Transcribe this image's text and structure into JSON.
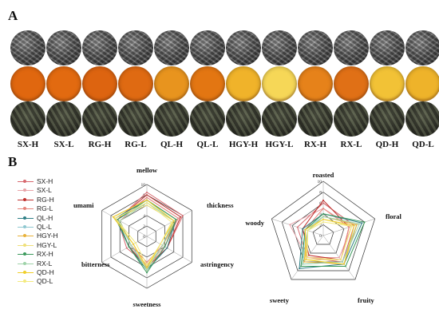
{
  "panel_a": {
    "label": "A",
    "samples": [
      "SX-H",
      "SX-L",
      "RG-H",
      "RG-L",
      "QL-H",
      "QL-L",
      "HGY-H",
      "HGY-L",
      "RX-H",
      "RX-L",
      "QD-H",
      "QD-L"
    ],
    "infusion_colors": [
      "#e0670f",
      "#e26a10",
      "#dd6410",
      "#df6a12",
      "#e8941e",
      "#e37612",
      "#f0b32a",
      "#f6d757",
      "#e6821a",
      "#e07016",
      "#f2c236",
      "#eeb32a"
    ]
  },
  "panel_b": {
    "label": "B",
    "legend": [
      {
        "name": "SX-H",
        "color": "#d7686e"
      },
      {
        "name": "SX-L",
        "color": "#e8a3a8"
      },
      {
        "name": "RG-H",
        "color": "#c0302d"
      },
      {
        "name": "RG-L",
        "color": "#e6847b"
      },
      {
        "name": "QL-H",
        "color": "#2e7f86"
      },
      {
        "name": "QL-L",
        "color": "#8fc8d0"
      },
      {
        "name": "HGY-H",
        "color": "#e8b23a"
      },
      {
        "name": "HGY-L",
        "color": "#efe07a"
      },
      {
        "name": "RX-H",
        "color": "#3c9a5c"
      },
      {
        "name": "RX-L",
        "color": "#9fd3a9"
      },
      {
        "name": "QD-H",
        "color": "#f0cf2a"
      },
      {
        "name": "QD-L",
        "color": "#f4ea7e"
      }
    ]
  },
  "chart_data": [
    {
      "type": "radar",
      "axes": [
        "mellow",
        "thickness",
        "astringency",
        "sweetness",
        "bitterness",
        "umami"
      ],
      "ticks": [
        "0",
        "2",
        "4",
        "6",
        "8",
        "10"
      ],
      "range": [
        0,
        10
      ],
      "series": [
        {
          "name": "SX-H",
          "values": [
            8.5,
            8.0,
            4.5,
            5.5,
            4.5,
            6.5
          ]
        },
        {
          "name": "SX-L",
          "values": [
            7.5,
            7.0,
            4.0,
            5.5,
            4.0,
            6.5
          ]
        },
        {
          "name": "RG-H",
          "values": [
            8.0,
            7.5,
            4.5,
            6.0,
            4.0,
            6.5
          ]
        },
        {
          "name": "RG-L",
          "values": [
            7.5,
            7.0,
            3.5,
            5.0,
            3.5,
            6.0
          ]
        },
        {
          "name": "QL-H",
          "values": [
            7.0,
            6.5,
            4.5,
            6.5,
            4.0,
            7.0
          ]
        },
        {
          "name": "QL-L",
          "values": [
            6.5,
            6.0,
            3.5,
            6.0,
            3.5,
            6.5
          ]
        },
        {
          "name": "HGY-H",
          "values": [
            7.0,
            6.5,
            3.5,
            6.5,
            3.0,
            7.5
          ]
        },
        {
          "name": "HGY-L",
          "values": [
            6.0,
            6.0,
            3.0,
            6.5,
            3.0,
            7.0
          ]
        },
        {
          "name": "RX-H",
          "values": [
            7.0,
            6.5,
            4.0,
            7.0,
            4.0,
            6.5
          ]
        },
        {
          "name": "RX-L",
          "values": [
            6.5,
            6.0,
            3.5,
            6.5,
            3.5,
            6.0
          ]
        },
        {
          "name": "QD-H",
          "values": [
            7.0,
            6.0,
            3.0,
            6.0,
            3.0,
            7.5
          ]
        },
        {
          "name": "QD-L",
          "values": [
            6.5,
            5.5,
            3.0,
            5.5,
            2.5,
            7.0
          ]
        }
      ]
    },
    {
      "type": "radar",
      "axes": [
        "roasted",
        "floral",
        "fruity",
        "sweety",
        "woody"
      ],
      "ticks": [
        "0",
        "2",
        "4",
        "6",
        "8",
        "10"
      ],
      "range": [
        0,
        10
      ],
      "series": [
        {
          "name": "SX-H",
          "values": [
            6.0,
            6.0,
            6.0,
            5.0,
            5.0
          ]
        },
        {
          "name": "SX-L",
          "values": [
            5.0,
            5.5,
            5.0,
            5.0,
            6.5
          ]
        },
        {
          "name": "RG-H",
          "values": [
            6.5,
            5.0,
            5.5,
            4.5,
            4.0
          ]
        },
        {
          "name": "RG-L",
          "values": [
            5.0,
            5.0,
            5.5,
            5.0,
            3.5
          ]
        },
        {
          "name": "QL-H",
          "values": [
            4.0,
            7.5,
            6.5,
            7.5,
            4.0
          ]
        },
        {
          "name": "QL-L",
          "values": [
            3.5,
            6.5,
            6.0,
            6.5,
            3.5
          ]
        },
        {
          "name": "HGY-H",
          "values": [
            3.5,
            6.5,
            6.5,
            6.0,
            3.0
          ]
        },
        {
          "name": "HGY-L",
          "values": [
            3.0,
            5.5,
            5.5,
            5.5,
            3.0
          ]
        },
        {
          "name": "RX-H",
          "values": [
            4.0,
            8.0,
            7.0,
            7.0,
            3.5
          ]
        },
        {
          "name": "RX-L",
          "values": [
            3.5,
            7.0,
            6.0,
            6.5,
            3.0
          ]
        },
        {
          "name": "QD-H",
          "values": [
            3.0,
            6.0,
            6.5,
            5.5,
            3.5
          ]
        },
        {
          "name": "QD-L",
          "values": [
            2.5,
            5.5,
            5.5,
            5.0,
            3.0
          ]
        }
      ]
    }
  ]
}
